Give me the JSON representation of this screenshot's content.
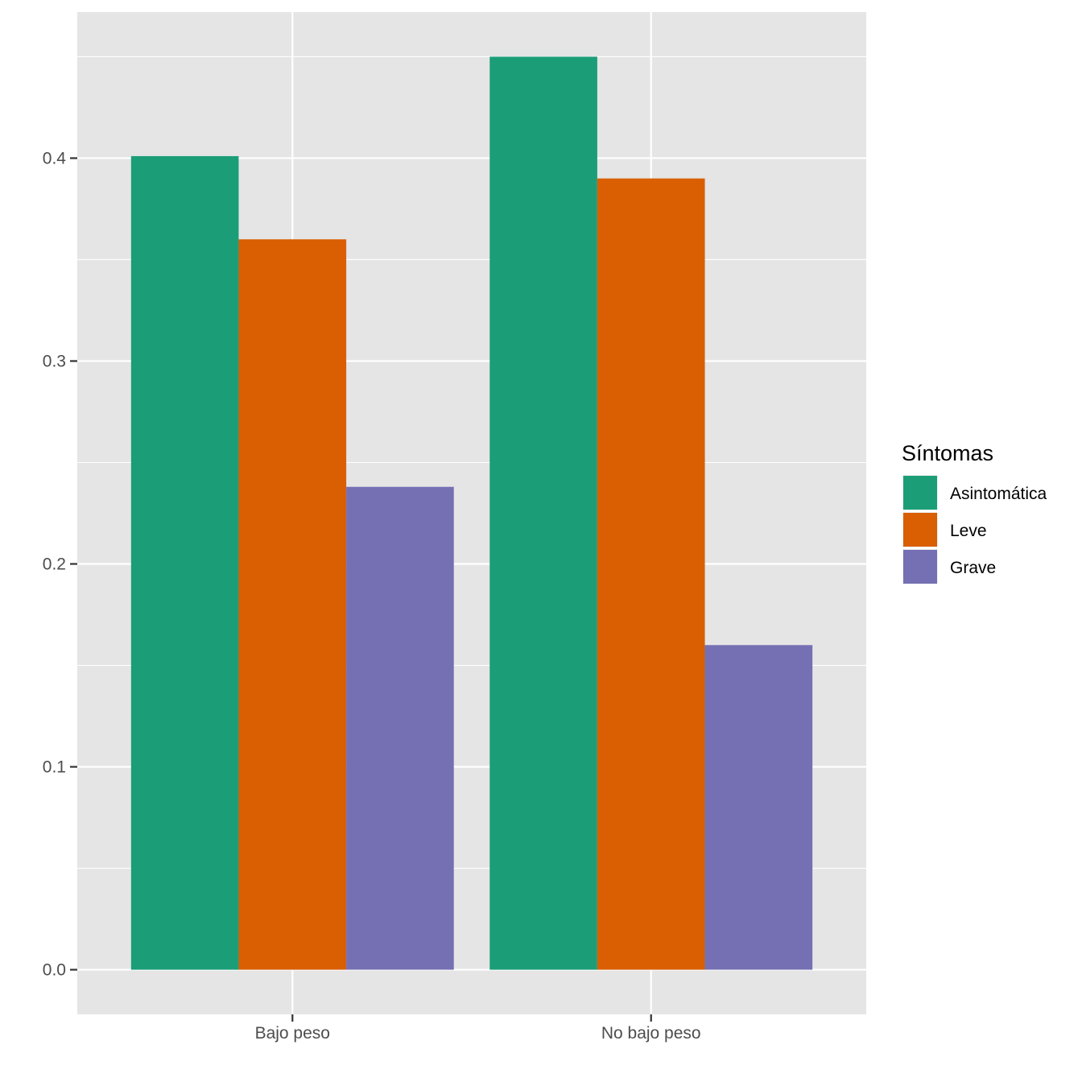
{
  "chart_data": {
    "type": "bar",
    "title": "",
    "xlabel": "",
    "ylabel": "",
    "categories": [
      "Bajo peso",
      "No bajo peso"
    ],
    "series": [
      {
        "name": "Asintomática",
        "color": "#1b9e77",
        "values": [
          0.401,
          0.45
        ]
      },
      {
        "name": "Leve",
        "color": "#d95f02",
        "values": [
          0.36,
          0.39
        ]
      },
      {
        "name": "Grave",
        "color": "#7570b3",
        "values": [
          0.238,
          0.16
        ]
      }
    ],
    "ylim": [
      -0.022,
      0.472
    ],
    "y_ticks": [
      "0.0",
      "0.1",
      "0.2",
      "0.3",
      "0.4"
    ],
    "grid": true,
    "legend": {
      "title": "Síntomas",
      "position": "right"
    },
    "colors": {
      "panel_background": "#e5e5e5",
      "grid": "#ffffff"
    }
  }
}
